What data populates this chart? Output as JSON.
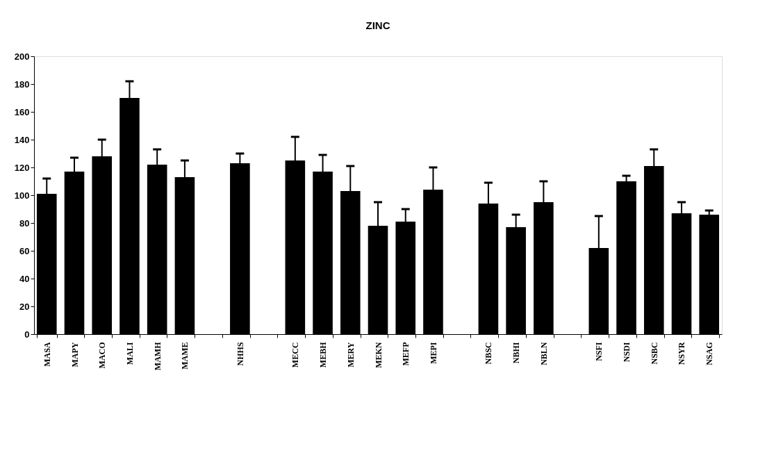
{
  "chart_data": {
    "type": "bar",
    "title": "ZINC",
    "categories": [
      "MASA",
      "MAPY",
      "MACO",
      "MALI",
      "MAMH",
      "MAME",
      null,
      "NHHS",
      null,
      "MECC",
      "MEBH",
      "MERY",
      "MEKN",
      "MEFP",
      "MEPI",
      null,
      "NBSC",
      "NBHI",
      "NBLN",
      null,
      "NSFI",
      "NSDI",
      "NSBC",
      "NSYR",
      "NSAG"
    ],
    "values": [
      101,
      117,
      128,
      170,
      122,
      113,
      null,
      123,
      null,
      125,
      117,
      103,
      78,
      81,
      104,
      null,
      94,
      77,
      95,
      null,
      62,
      110,
      121,
      87,
      86
    ],
    "errors": [
      [
        101,
        112
      ],
      [
        117,
        127
      ],
      [
        128,
        140
      ],
      [
        170,
        182
      ],
      [
        122,
        133
      ],
      [
        113,
        125
      ],
      null,
      [
        123,
        130
      ],
      null,
      [
        125,
        142
      ],
      [
        117,
        129
      ],
      [
        103,
        121
      ],
      [
        78,
        95
      ],
      [
        81,
        90
      ],
      [
        104,
        120
      ],
      null,
      [
        94,
        109
      ],
      [
        77,
        86
      ],
      [
        95,
        110
      ],
      null,
      [
        62,
        85
      ],
      [
        110,
        114
      ],
      [
        121,
        133
      ],
      [
        87,
        95
      ],
      [
        86,
        89
      ]
    ],
    "color": "#000000",
    "ylim": [
      0,
      200
    ],
    "yticks": [
      0,
      20,
      40,
      60,
      80,
      100,
      120,
      140,
      160,
      180,
      200
    ],
    "grid": false
  }
}
